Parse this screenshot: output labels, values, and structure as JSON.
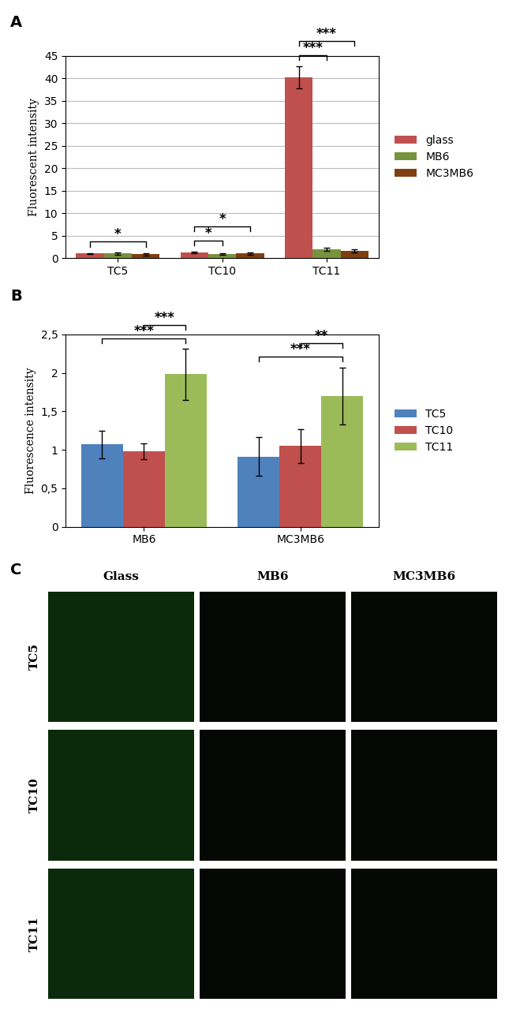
{
  "chart_data": [
    {
      "type": "bar",
      "panel_label": "A",
      "y_label": "Fluorescent intensity",
      "categories": [
        "TC5",
        "TC10",
        "TC11"
      ],
      "series": [
        {
          "name": "glass",
          "color": "#c0504d",
          "values": [
            1.1,
            1.3,
            40.2
          ],
          "errors": [
            0.1,
            0.15,
            2.5
          ]
        },
        {
          "name": "MB6",
          "color": "#77933c",
          "values": [
            1.05,
            0.95,
            1.95
          ],
          "errors": [
            0.2,
            0.1,
            0.35
          ]
        },
        {
          "name": "MC3MB6",
          "color": "#7f3f10",
          "values": [
            0.9,
            1.05,
            1.7
          ],
          "errors": [
            0.25,
            0.2,
            0.35
          ]
        }
      ],
      "ylim": [
        0,
        45
      ],
      "yticks": [
        0,
        5,
        10,
        15,
        20,
        25,
        30,
        35,
        40,
        45
      ],
      "grid": true,
      "legend": "right",
      "annotations": [
        {
          "text": "*",
          "group": "TC5",
          "between": [
            "glass",
            "MC3MB6"
          ]
        },
        {
          "text": "*",
          "group": "TC10",
          "between": [
            "glass",
            "MB6"
          ]
        },
        {
          "text": "*",
          "group": "TC10",
          "between": [
            "glass",
            "MC3MB6"
          ]
        },
        {
          "text": "***",
          "group": "TC11",
          "between": [
            "glass",
            "MB6"
          ]
        },
        {
          "text": "***",
          "group": "TC11",
          "between": [
            "glass",
            "MC3MB6"
          ]
        }
      ]
    },
    {
      "type": "bar",
      "panel_label": "B",
      "y_label": "Fluorescence intensity",
      "categories": [
        "MB6",
        "MC3MB6"
      ],
      "series": [
        {
          "name": "TC5",
          "color": "#4f81bd",
          "values": [
            1.07,
            0.91
          ],
          "errors": [
            0.18,
            0.25
          ]
        },
        {
          "name": "TC10",
          "color": "#c0504d",
          "values": [
            0.98,
            1.05
          ],
          "errors": [
            0.1,
            0.22
          ]
        },
        {
          "name": "TC11",
          "color": "#9bbb59",
          "values": [
            1.98,
            1.7
          ],
          "errors": [
            0.33,
            0.37
          ]
        }
      ],
      "ylim": [
        0,
        2.5
      ],
      "yticks": [
        0,
        {
          "value": 0.5,
          "label": "0,5"
        },
        1,
        {
          "value": 1.5,
          "label": "1,5"
        },
        2,
        {
          "value": 2.5,
          "label": "2,5"
        }
      ],
      "grid": false,
      "legend": "right",
      "annotations": [
        {
          "text": "***",
          "group": "MB6",
          "between": [
            "TC5",
            "TC11"
          ]
        },
        {
          "text": "***",
          "group": "MB6",
          "between": [
            "TC10",
            "TC11"
          ]
        },
        {
          "text": "***",
          "group": "MC3MB6",
          "between": [
            "TC5",
            "TC11"
          ]
        },
        {
          "text": "**",
          "group": "MC3MB6",
          "between": [
            "TC10",
            "TC11"
          ]
        }
      ]
    }
  ],
  "panel_c": {
    "panel_label": "C",
    "columns": [
      "Glass",
      "MB6",
      "MC3MB6"
    ],
    "rows": [
      "TC5",
      "TC10",
      "TC11"
    ]
  }
}
